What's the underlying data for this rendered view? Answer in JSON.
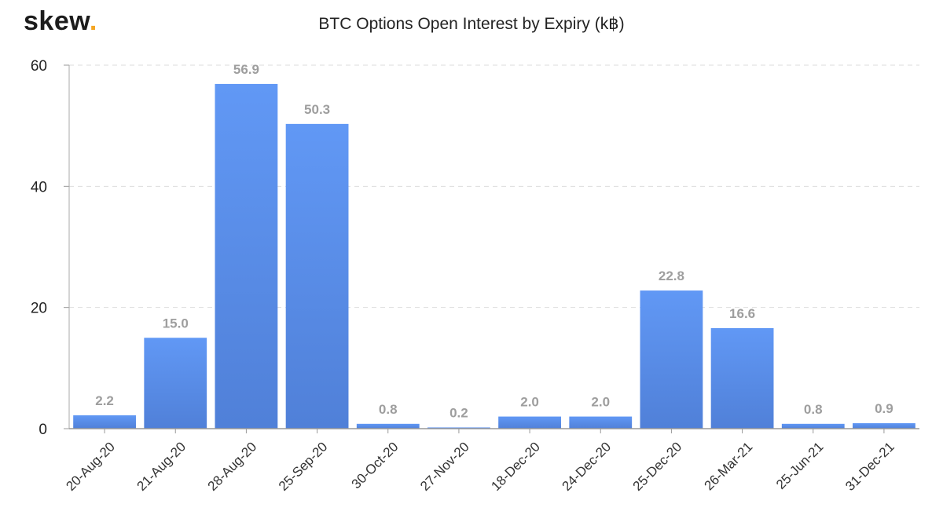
{
  "brand": {
    "name": "skew",
    "dot": "."
  },
  "chart_data": {
    "type": "bar",
    "title": "BTC Options Open Interest by Expiry (k฿)",
    "xlabel": "",
    "ylabel": "",
    "categories": [
      "20-Aug-20",
      "21-Aug-20",
      "28-Aug-20",
      "25-Sep-20",
      "30-Oct-20",
      "27-Nov-20",
      "18-Dec-20",
      "24-Dec-20",
      "25-Dec-20",
      "26-Mar-21",
      "25-Jun-21",
      "31-Dec-21"
    ],
    "values": [
      2.2,
      15.0,
      56.9,
      50.3,
      0.8,
      0.2,
      2.0,
      2.0,
      22.8,
      16.6,
      0.8,
      0.9
    ],
    "data_labels": [
      "2.2",
      "15.0",
      "56.9",
      "50.3",
      "0.8",
      "0.2",
      "2.0",
      "2.0",
      "22.8",
      "16.6",
      "0.8",
      "0.9"
    ],
    "ylim": [
      0,
      60
    ],
    "yticks": [
      0,
      20,
      40,
      60
    ],
    "grid": true,
    "legend": "none",
    "colors": {
      "bar_top": "#6198f5",
      "bar_bottom": "#5080d8",
      "grid": "#dddddd",
      "label": "#9e9e9e"
    }
  }
}
